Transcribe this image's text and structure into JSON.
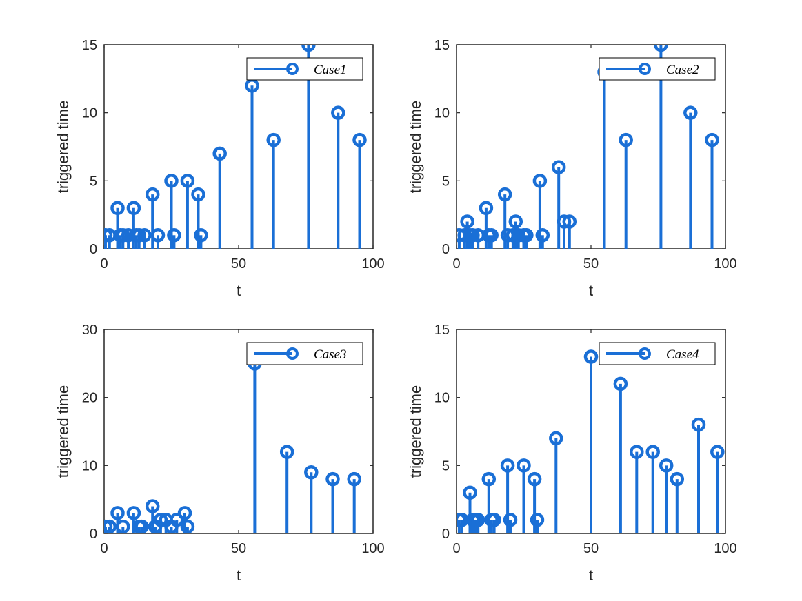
{
  "colors": {
    "series": "#1a6fd6",
    "axis": "#262626"
  },
  "chart_data": [
    {
      "type": "stem",
      "title": "",
      "xlabel": "t",
      "ylabel": "triggered time",
      "xlim": [
        0,
        100
      ],
      "ylim": [
        0,
        15
      ],
      "xticks": [
        0,
        50,
        100
      ],
      "yticks": [
        0,
        5,
        10,
        15
      ],
      "legend": "Case1",
      "legend_position": "top-right",
      "x": [
        0.5,
        2,
        5,
        6,
        7,
        9,
        11,
        12,
        13,
        15,
        18,
        20,
        25,
        26,
        31,
        35,
        36,
        43,
        55,
        63,
        76,
        87,
        95
      ],
      "y": [
        1,
        1,
        3,
        1,
        1,
        1,
        3,
        1,
        1,
        1,
        4,
        1,
        5,
        1,
        5,
        4,
        1,
        7,
        12,
        8,
        15,
        10,
        8
      ]
    },
    {
      "type": "stem",
      "title": "",
      "xlabel": "t",
      "ylabel": "triggered time",
      "xlim": [
        0,
        100
      ],
      "ylim": [
        0,
        15
      ],
      "xticks": [
        0,
        50,
        100
      ],
      "yticks": [
        0,
        5,
        10,
        15
      ],
      "legend": "Case2",
      "legend_position": "top-right",
      "x": [
        1,
        3,
        4,
        5,
        6,
        8,
        11,
        12,
        13,
        18,
        19,
        21,
        22,
        23,
        25,
        26,
        31,
        32,
        38,
        40,
        42,
        55,
        63,
        76,
        87,
        95
      ],
      "y": [
        1,
        1,
        2,
        1,
        1,
        1,
        3,
        1,
        1,
        4,
        1,
        1,
        2,
        1,
        1,
        1,
        5,
        1,
        6,
        2,
        2,
        13,
        8,
        15,
        10,
        8
      ]
    },
    {
      "type": "stem",
      "title": "",
      "xlabel": "t",
      "ylabel": "triggered time",
      "xlim": [
        0,
        100
      ],
      "ylim": [
        0,
        30
      ],
      "xticks": [
        0,
        50,
        100
      ],
      "yticks": [
        0,
        10,
        20,
        30
      ],
      "legend": "Case3",
      "legend_position": "top-right",
      "x": [
        0.5,
        2,
        5,
        7,
        11,
        13,
        14,
        18,
        19,
        21,
        23,
        25,
        27,
        30,
        31,
        56,
        68,
        77,
        85,
        93
      ],
      "y": [
        1,
        1,
        3,
        1,
        3,
        1,
        1,
        4,
        1,
        2,
        2,
        1,
        2,
        3,
        1,
        25,
        12,
        9,
        8,
        8
      ]
    },
    {
      "type": "stem",
      "title": "",
      "xlabel": "t",
      "ylabel": "triggered time",
      "xlim": [
        0,
        100
      ],
      "ylim": [
        0,
        15
      ],
      "xticks": [
        0,
        50,
        100
      ],
      "yticks": [
        0,
        5,
        10,
        15
      ],
      "legend": "Case4",
      "legend_position": "top-right",
      "x": [
        1,
        2,
        5,
        6,
        7,
        8,
        12,
        13,
        14,
        19,
        20,
        25,
        29,
        30,
        37,
        50,
        61,
        67,
        73,
        78,
        82,
        90,
        97
      ],
      "y": [
        1,
        1,
        3,
        1,
        1,
        1,
        4,
        1,
        1,
        5,
        1,
        5,
        4,
        1,
        7,
        13,
        11,
        6,
        6,
        5,
        4,
        8,
        6
      ]
    }
  ]
}
